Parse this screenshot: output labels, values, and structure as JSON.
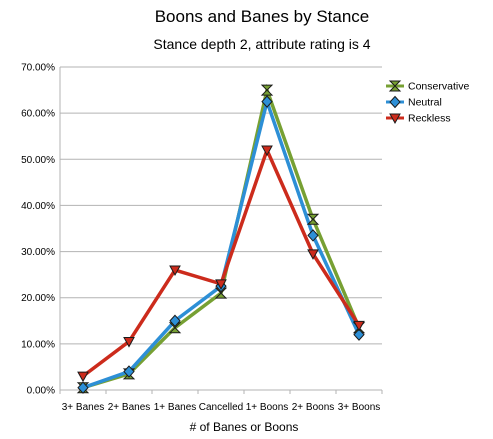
{
  "chart_data": {
    "type": "line",
    "title": "Boons and Banes by Stance",
    "subtitle": "Stance depth 2, attribute rating is 4",
    "xlabel": "# of Banes or Boons",
    "ylabel": "",
    "categories": [
      "3+ Banes",
      "2+ Banes",
      "1+ Banes",
      "Cancelled",
      "1+ Boons",
      "2+ Boons",
      "3+ Boons"
    ],
    "y_tick_labels": [
      "0.00%",
      "10.00%",
      "20.00%",
      "30.00%",
      "40.00%",
      "50.00%",
      "60.00%",
      "70.00%"
    ],
    "ylim": [
      0,
      70
    ],
    "grid": "horizontal",
    "legend_position": "right",
    "series": [
      {
        "name": "Conservative",
        "color": "#77a033",
        "marker": "hourglass",
        "values": [
          0.5,
          3.5,
          13.5,
          21,
          65,
          37,
          13.5
        ]
      },
      {
        "name": "Neutral",
        "color": "#2d8fd6",
        "marker": "diamond",
        "values": [
          0.5,
          4,
          15,
          22.5,
          62.5,
          33.5,
          12
        ]
      },
      {
        "name": "Reckless",
        "color": "#cc2b1c",
        "marker": "triangle-down",
        "values": [
          3,
          10.5,
          26,
          23,
          52,
          29.5,
          14
        ]
      }
    ]
  }
}
